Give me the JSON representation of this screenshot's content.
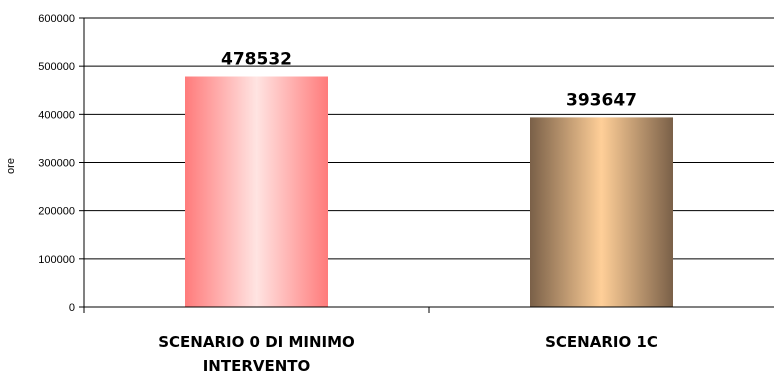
{
  "chart_data": {
    "type": "bar",
    "categories": [
      "SCENARIO 0 DI MINIMO INTERVENTO",
      "SCENARIO 1C"
    ],
    "category_lines": [
      [
        "SCENARIO 0 DI MINIMO",
        "INTERVENTO"
      ],
      [
        "SCENARIO 1C"
      ]
    ],
    "values": [
      478532,
      393647
    ],
    "data_labels": [
      "478532",
      "393647"
    ],
    "ylabel": "ore",
    "xlabel": "",
    "ylim": [
      0,
      600000
    ],
    "yticks": [
      "0",
      "100000",
      "200000",
      "300000",
      "400000",
      "500000",
      "600000"
    ],
    "grid": true,
    "legend": "none",
    "colors": {
      "bar1_edge": "#ff7b7b",
      "bar1_center": "#ffe4e2",
      "bar2_edge": "#7a6048",
      "bar2_center": "#ffcf98",
      "grid": "#000000"
    }
  }
}
